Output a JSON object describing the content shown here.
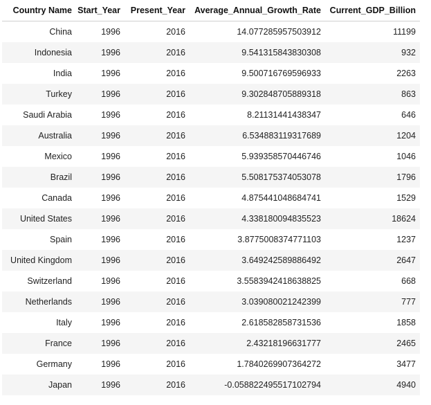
{
  "table": {
    "columns": [
      "Country Name",
      "Start_Year",
      "Present_Year",
      "Average_Annual_Growth_Rate",
      "Current_GDP_Billion"
    ],
    "rows": [
      [
        "China",
        "1996",
        "2016",
        "14.077285957503912",
        "11199"
      ],
      [
        "Indonesia",
        "1996",
        "2016",
        "9.541315843830308",
        "932"
      ],
      [
        "India",
        "1996",
        "2016",
        "9.500716769596933",
        "2263"
      ],
      [
        "Turkey",
        "1996",
        "2016",
        "9.302848705889318",
        "863"
      ],
      [
        "Saudi Arabia",
        "1996",
        "2016",
        "8.21131441438347",
        "646"
      ],
      [
        "Australia",
        "1996",
        "2016",
        "6.534883119317689",
        "1204"
      ],
      [
        "Mexico",
        "1996",
        "2016",
        "5.939358570446746",
        "1046"
      ],
      [
        "Brazil",
        "1996",
        "2016",
        "5.508175374053078",
        "1796"
      ],
      [
        "Canada",
        "1996",
        "2016",
        "4.875441048684741",
        "1529"
      ],
      [
        "United States",
        "1996",
        "2016",
        "4.338180094835523",
        "18624"
      ],
      [
        "Spain",
        "1996",
        "2016",
        "3.8775008374771103",
        "1237"
      ],
      [
        "United Kingdom",
        "1996",
        "2016",
        "3.649242589886492",
        "2647"
      ],
      [
        "Switzerland",
        "1996",
        "2016",
        "3.5583942418638825",
        "668"
      ],
      [
        "Netherlands",
        "1996",
        "2016",
        "3.039080021242399",
        "777"
      ],
      [
        "Italy",
        "1996",
        "2016",
        "2.618582858731536",
        "1858"
      ],
      [
        "France",
        "1996",
        "2016",
        "2.43218196631777",
        "2465"
      ],
      [
        "Germany",
        "1996",
        "2016",
        "1.7840269907364272",
        "3477"
      ],
      [
        "Japan",
        "1996",
        "2016",
        "-0.058822495517102794",
        "4940"
      ]
    ]
  }
}
